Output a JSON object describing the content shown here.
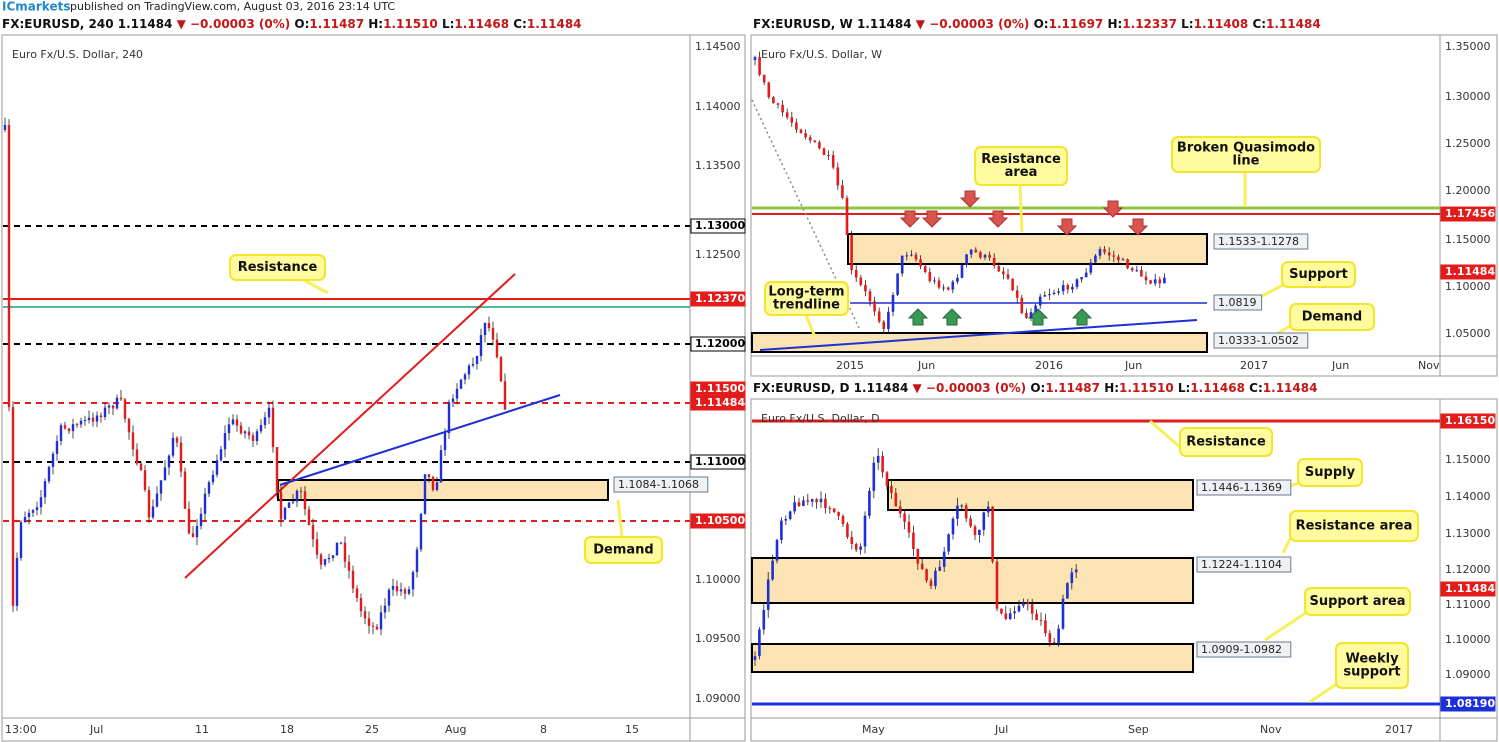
{
  "header": {
    "publisher": "ICmarkets",
    "published": "published on TradingView.com, August 03, 2016 23:14 UTC"
  },
  "panels": [
    {
      "symbol": "FX:EURUSD, 240",
      "last": "1.11484",
      "change": "▼ −0.00003 (0%)",
      "ohlc": [
        {
          "label": "O:",
          "value": "1.11487"
        },
        {
          "label": "H:",
          "value": "1.11510"
        },
        {
          "label": "L:",
          "value": "1.11468"
        },
        {
          "label": "C:",
          "value": "1.11484"
        }
      ],
      "title": "Euro Fx/U.S. Dollar, 240",
      "price_labels": [
        "1.14500",
        "1.14000",
        "1.13500",
        "1.13000",
        "1.12500",
        "1.12370",
        "1.12000",
        "1.11500",
        "1.11484",
        "1.11000",
        "1.10500",
        "1.10000",
        "1.09500",
        "1.09000"
      ],
      "time_labels": [
        "13:00",
        "Jul",
        "11",
        "18",
        "25",
        "Aug",
        "8",
        "15"
      ],
      "annotations": [
        [
          "Resistance"
        ],
        [
          "Demand"
        ]
      ],
      "zones": [
        "1.1084-1.1068"
      ]
    },
    {
      "symbol": "FX:EURUSD, W",
      "last": "1.11484",
      "change": "▼ −0.00003 (0%)",
      "ohlc": [
        {
          "label": "O:",
          "value": "1.11697"
        },
        {
          "label": "H:",
          "value": "1.12337"
        },
        {
          "label": "L:",
          "value": "1.11408"
        },
        {
          "label": "C:",
          "value": "1.11484"
        }
      ],
      "title": "Euro Fx/U.S. Dollar, W",
      "price_labels": [
        "1.35000",
        "1.30000",
        "1.25000",
        "1.20000",
        "1.17456",
        "1.15000",
        "1.11484",
        "1.10000",
        "1.05000"
      ],
      "time_labels": [
        "2015",
        "Jun",
        "2016",
        "Jun",
        "2017",
        "Jun",
        "Nov"
      ],
      "annotations": [
        [
          "Resistance",
          "area"
        ],
        [
          "Broken Quasimodo",
          "line"
        ],
        [
          "Support"
        ],
        [
          "Long-term",
          "trendline"
        ],
        [
          "Demand"
        ]
      ],
      "zones": [
        "1.1533-1.1278",
        "1.0819",
        "1.0333-1.0502"
      ]
    },
    {
      "symbol": "FX:EURUSD, D",
      "last": "1.11484",
      "change": "▼ −0.00003 (0%)",
      "ohlc": [
        {
          "label": "O:",
          "value": "1.11487"
        },
        {
          "label": "H:",
          "value": "1.11510"
        },
        {
          "label": "L:",
          "value": "1.11468"
        },
        {
          "label": "C:",
          "value": "1.11484"
        }
      ],
      "title": "Euro Fx/U.S. Dollar, D",
      "price_labels": [
        "1.16150",
        "1.15000",
        "1.14000",
        "1.13000",
        "1.12000",
        "1.11484",
        "1.11000",
        "1.10000",
        "1.09000",
        "1.08190"
      ],
      "time_labels": [
        "May",
        "Jul",
        "Sep",
        "Nov",
        "2017"
      ],
      "annotations": [
        [
          "Resistance"
        ],
        [
          "Supply"
        ],
        [
          "Resistance area"
        ],
        [
          "Support area"
        ],
        [
          "Weekly",
          "support"
        ]
      ],
      "zones": [
        "1.1446-1.1369",
        "1.1224-1.1104",
        "1.0909-1.0982"
      ]
    }
  ]
}
